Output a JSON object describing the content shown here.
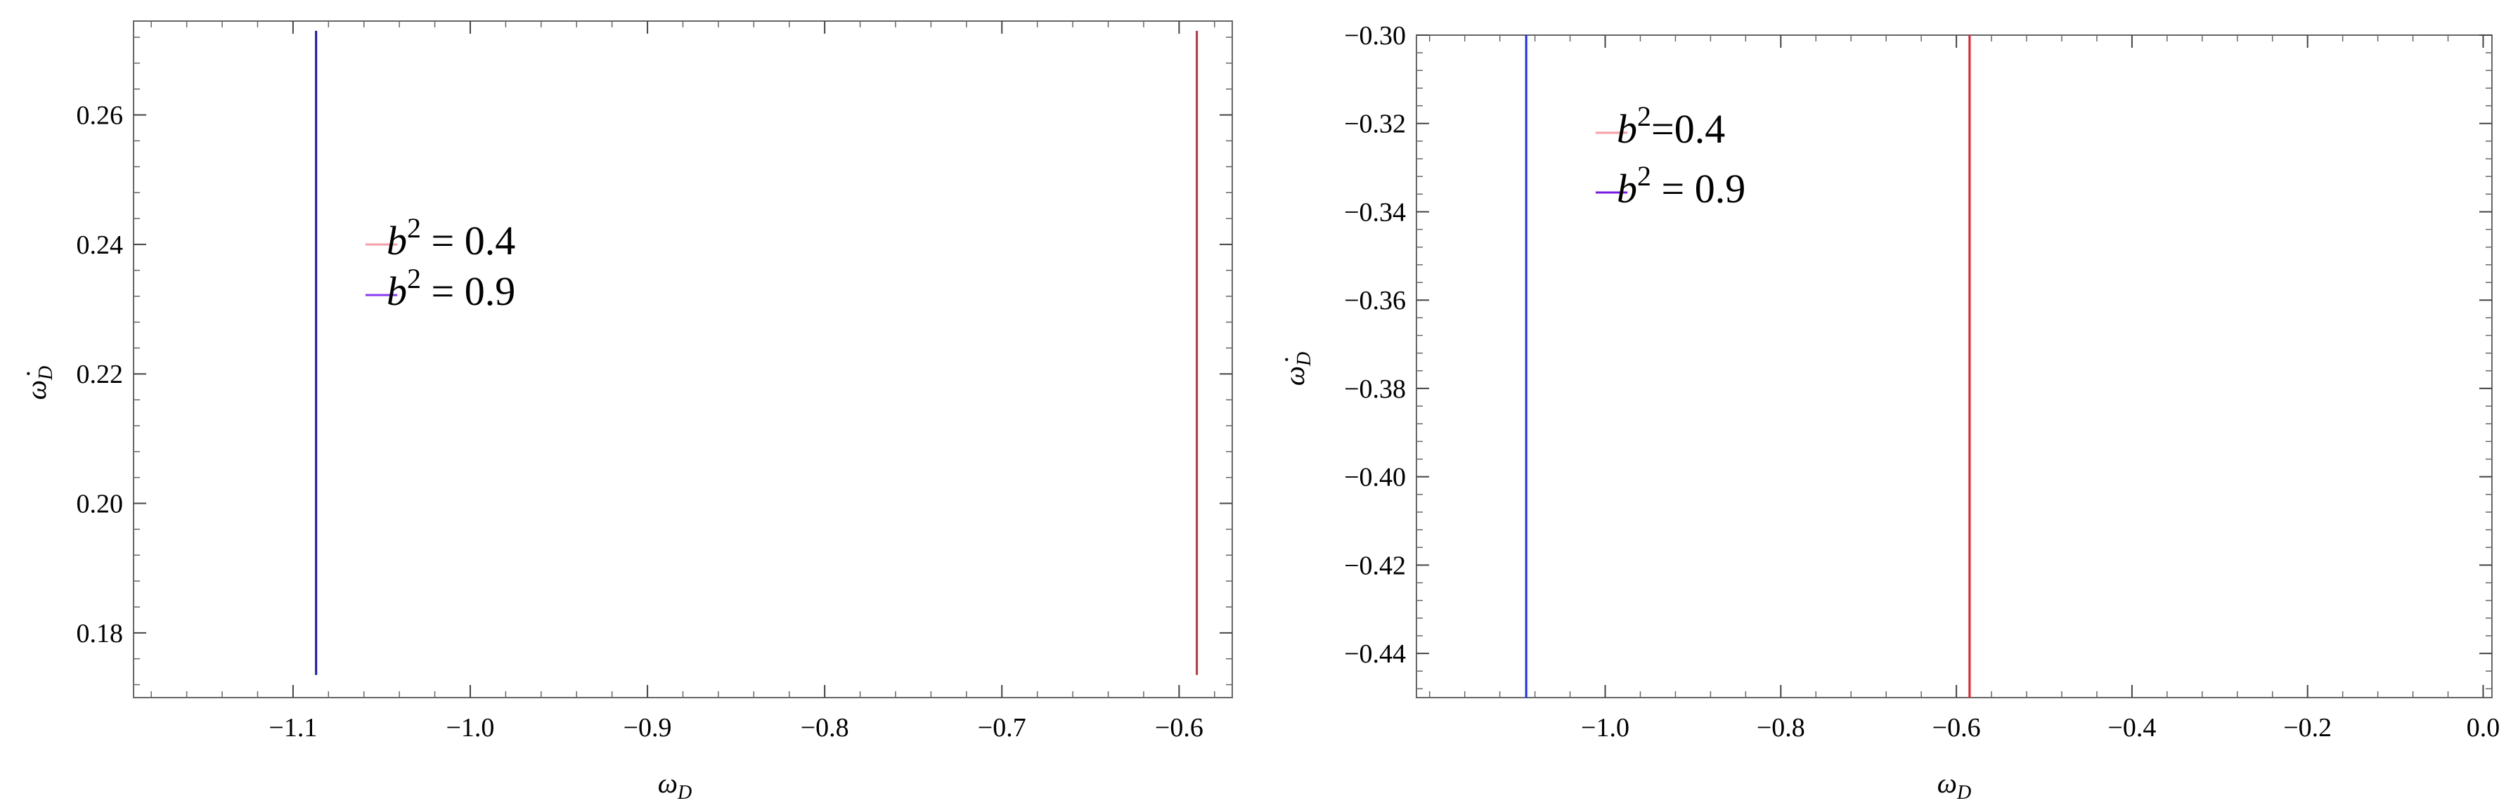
{
  "chart_data": [
    {
      "type": "line",
      "xlabel": "ω",
      "xlabel_sub": "D",
      "ylabel": "ω̇",
      "ylabel_sub": "D",
      "xlim": [
        -1.19,
        -0.57
      ],
      "ylim": [
        0.17,
        0.2745
      ],
      "xticks": [
        -1.1,
        -1.0,
        -0.9,
        -0.8,
        -0.7,
        -0.6
      ],
      "xtick_labels": [
        "−1.1",
        "−1.0",
        "−0.9",
        "−0.8",
        "−0.7",
        "−0.6"
      ],
      "yticks": [
        0.18,
        0.2,
        0.22,
        0.24,
        0.26
      ],
      "ytick_labels": [
        "0.18",
        "0.20",
        "0.22",
        "0.24",
        "0.26"
      ],
      "legend_position": "upper-left",
      "series": [
        {
          "name": "b2 = 0.4",
          "legend_var": "b",
          "legend_exp": "2",
          "legend_rest": " = 0.4",
          "color": "#e8202a",
          "legend_color": "#f4a0a6",
          "x": [
            -0.59,
            -0.59
          ],
          "y": [
            0.1735,
            0.273
          ]
        },
        {
          "name": "b2 = 0.9",
          "legend_var": "b",
          "legend_exp": "2",
          "legend_rest": " = 0.9",
          "color": "#1a1aa8",
          "legend_color": "#8a3cf0",
          "x": [
            -1.087,
            -1.087
          ],
          "y": [
            0.1735,
            0.273
          ]
        }
      ]
    },
    {
      "type": "line",
      "xlabel": "ω",
      "xlabel_sub": "D",
      "ylabel": "ω̇",
      "ylabel_sub": "D",
      "xlim": [
        -1.215,
        0.01
      ],
      "ylim": [
        -0.45,
        -0.3
      ],
      "xticks": [
        -1.0,
        -0.8,
        -0.6,
        -0.4,
        -0.2,
        0.0
      ],
      "xtick_labels": [
        "−1.0",
        "−0.8",
        "−0.6",
        "−0.4",
        "−0.2",
        "0.0"
      ],
      "yticks": [
        -0.3,
        -0.32,
        -0.34,
        -0.36,
        -0.38,
        -0.4,
        -0.42,
        -0.44
      ],
      "ytick_labels": [
        "−0.30",
        "−0.32",
        "−0.34",
        "−0.36",
        "−0.38",
        "−0.40",
        "−0.42",
        "−0.44"
      ],
      "legend_position": "upper-left",
      "series": [
        {
          "name": "b2=0.4",
          "legend_var": "b",
          "legend_exp": "2",
          "legend_rest": "=0.4",
          "color": "#e8202a",
          "legend_color": "#f4a0a6",
          "x": [
            -0.585,
            -0.585
          ],
          "y": [
            -0.45,
            -0.3
          ]
        },
        {
          "name": "b2 = 0.9",
          "legend_var": "b",
          "legend_exp": "2",
          "legend_rest": " = 0.9",
          "color": "#1a2ef0",
          "legend_color": "#7a1ae0",
          "x": [
            -1.09,
            -1.09
          ],
          "y": [
            -0.45,
            -0.3
          ]
        }
      ]
    }
  ]
}
